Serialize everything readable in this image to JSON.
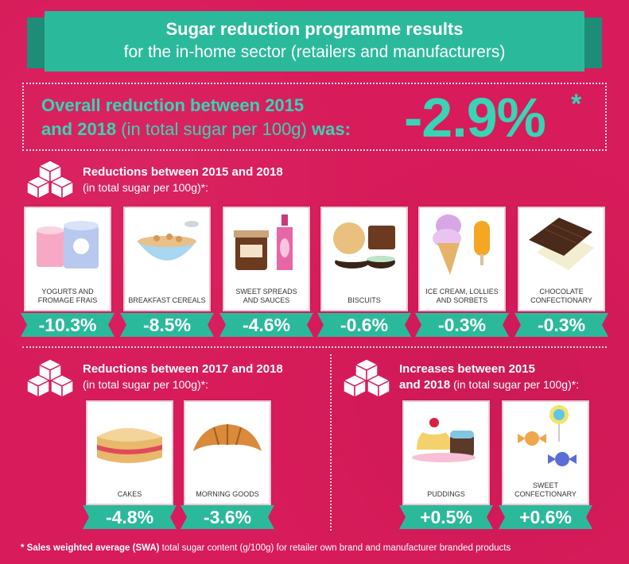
{
  "banner": {
    "title": "Sugar reduction programme results",
    "subtitle": "for the in-home sector (retailers and manufacturers)"
  },
  "overall": {
    "line1": "Overall reduction between 2015",
    "line2_a": "and 2018",
    "line2_b": " (in total sugar per 100g) ",
    "line2_c": "was:",
    "value": "-2.9%",
    "star": "*"
  },
  "section1": {
    "title": "Reductions between 2015 and 2018",
    "subtitle": "(in total sugar per 100g)*:",
    "items": [
      {
        "label": "YOGURTS AND FROMAGE FRAIS",
        "value": "-10.3%"
      },
      {
        "label": "BREAKFAST CEREALS",
        "value": "-8.5%"
      },
      {
        "label": "SWEET SPREADS AND SAUCES",
        "value": "-4.6%"
      },
      {
        "label": "BISCUITS",
        "value": "-0.6%"
      },
      {
        "label": "ICE CREAM, LOLLIES AND SORBETS",
        "value": "-0.3%"
      },
      {
        "label": "CHOCOLATE CONFECTIONARY",
        "value": "-0.3%"
      }
    ]
  },
  "section2": {
    "title": "Reductions between 2017 and 2018",
    "subtitle": "(in total sugar per 100g)*:",
    "items": [
      {
        "label": "CAKES",
        "value": "-4.8%"
      },
      {
        "label": "MORNING GOODS",
        "value": "-3.6%"
      }
    ]
  },
  "section3": {
    "title": "Increases between 2015",
    "title2": "and 2018",
    "subtitle": " (in total sugar per 100g)*:",
    "items": [
      {
        "label": "PUDDINGS",
        "value": "+0.5%"
      },
      {
        "label": "SWEET CONFECTIONARY",
        "value": "+0.6%"
      }
    ]
  },
  "footnote": {
    "bold": "* Sales weighted average (SWA)",
    "rest": " total sugar content (g/100g) for retailer own brand and manufacturer branded products"
  },
  "colors": {
    "background": "#d81b5a",
    "teal": "#2bb99c",
    "teal_text": "#38d4b5"
  }
}
